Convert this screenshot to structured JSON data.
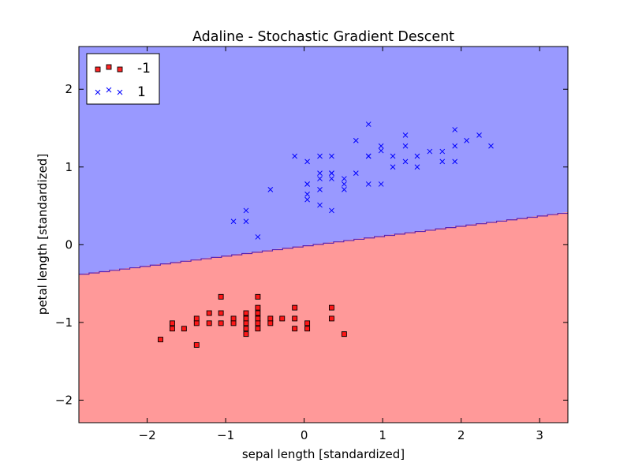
{
  "chart_data": {
    "type": "scatter",
    "title": "Adaline - Stochastic Gradient Descent",
    "xlabel": "sepal length [standardized]",
    "ylabel": "petal length [standardized]",
    "xlim": [
      -2.87,
      3.36
    ],
    "ylim": [
      -2.29,
      2.55
    ],
    "xticks": [
      -2,
      -1,
      0,
      1,
      2,
      3
    ],
    "yticks": [
      -2,
      -1,
      0,
      1,
      2
    ],
    "xtick_labels": [
      "−2",
      "−1",
      "0",
      "1",
      "2",
      "3"
    ],
    "ytick_labels": [
      "−2",
      "−1",
      "0",
      "1",
      "2"
    ],
    "grid": false,
    "legend_position": "top-left",
    "decision_boundary": {
      "line": [
        [
          -2.87,
          -0.38
        ],
        [
          3.36,
          0.42
        ]
      ],
      "region_above_color": "#9999ff",
      "region_below_color": "#ff9999",
      "line_color": "#5a24b4"
    },
    "series": [
      {
        "name": "-1",
        "marker": "square",
        "color": "#ff0000",
        "points": [
          [
            -1.83,
            -1.22
          ],
          [
            -1.68,
            -1.01
          ],
          [
            -1.68,
            -1.08
          ],
          [
            -1.53,
            -1.08
          ],
          [
            -1.37,
            -0.95
          ],
          [
            -1.37,
            -1.01
          ],
          [
            -1.37,
            -1.29
          ],
          [
            -1.21,
            -0.88
          ],
          [
            -1.21,
            -1.01
          ],
          [
            -1.06,
            -0.67
          ],
          [
            -1.06,
            -0.88
          ],
          [
            -1.06,
            -1.01
          ],
          [
            -0.9,
            -0.95
          ],
          [
            -0.9,
            -1.01
          ],
          [
            -0.74,
            -0.88
          ],
          [
            -0.74,
            -0.95
          ],
          [
            -0.74,
            -1.01
          ],
          [
            -0.74,
            -1.08
          ],
          [
            -0.74,
            -1.15
          ],
          [
            -0.59,
            -0.67
          ],
          [
            -0.59,
            -0.81
          ],
          [
            -0.59,
            -0.88
          ],
          [
            -0.59,
            -0.95
          ],
          [
            -0.59,
            -1.01
          ],
          [
            -0.59,
            -1.08
          ],
          [
            -0.43,
            -0.95
          ],
          [
            -0.43,
            -1.01
          ],
          [
            -0.28,
            -0.95
          ],
          [
            -0.12,
            -0.81
          ],
          [
            -0.12,
            -0.95
          ],
          [
            -0.12,
            -1.08
          ],
          [
            0.04,
            -1.01
          ],
          [
            0.04,
            -1.08
          ],
          [
            0.35,
            -0.81
          ],
          [
            0.35,
            -0.95
          ],
          [
            0.51,
            -1.15
          ]
        ]
      },
      {
        "name": "1",
        "marker": "x",
        "color": "#0000ff",
        "points": [
          [
            -0.9,
            0.3
          ],
          [
            -0.74,
            0.44
          ],
          [
            -0.74,
            0.3
          ],
          [
            -0.59,
            0.1
          ],
          [
            -0.43,
            0.71
          ],
          [
            -0.12,
            1.14
          ],
          [
            0.04,
            1.07
          ],
          [
            0.04,
            0.78
          ],
          [
            0.04,
            0.65
          ],
          [
            0.04,
            0.58
          ],
          [
            0.04,
            0.78
          ],
          [
            0.2,
            1.14
          ],
          [
            0.2,
            0.92
          ],
          [
            0.2,
            0.85
          ],
          [
            0.2,
            0.71
          ],
          [
            0.2,
            0.51
          ],
          [
            0.35,
            1.14
          ],
          [
            0.35,
            0.92
          ],
          [
            0.35,
            0.85
          ],
          [
            0.35,
            0.92
          ],
          [
            0.35,
            0.44
          ],
          [
            0.51,
            0.85
          ],
          [
            0.51,
            0.78
          ],
          [
            0.51,
            0.71
          ],
          [
            0.66,
            1.34
          ],
          [
            0.66,
            0.92
          ],
          [
            0.82,
            1.55
          ],
          [
            0.82,
            1.14
          ],
          [
            0.82,
            1.14
          ],
          [
            0.82,
            0.78
          ],
          [
            0.98,
            1.27
          ],
          [
            0.98,
            1.21
          ],
          [
            0.98,
            0.78
          ],
          [
            1.13,
            1.14
          ],
          [
            1.13,
            1.0
          ],
          [
            1.29,
            1.41
          ],
          [
            1.29,
            1.27
          ],
          [
            1.29,
            1.07
          ],
          [
            1.44,
            1.14
          ],
          [
            1.44,
            1.0
          ],
          [
            1.6,
            1.2
          ],
          [
            1.76,
            1.2
          ],
          [
            1.76,
            1.07
          ],
          [
            1.92,
            1.48
          ],
          [
            1.92,
            1.27
          ],
          [
            1.92,
            1.07
          ],
          [
            2.07,
            1.34
          ],
          [
            2.23,
            1.41
          ],
          [
            2.38,
            1.27
          ]
        ]
      }
    ]
  }
}
